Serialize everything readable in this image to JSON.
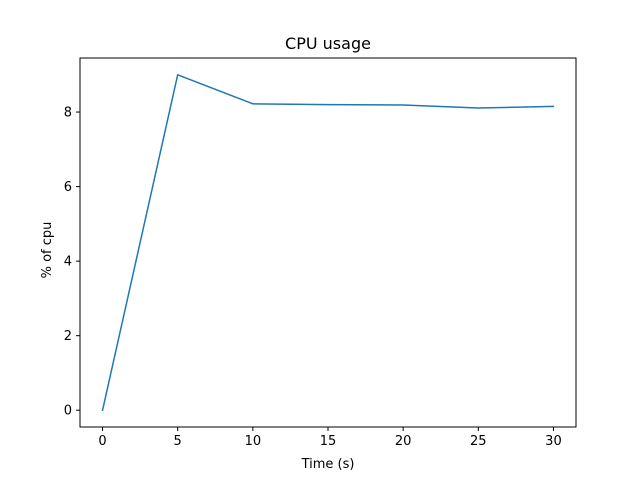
{
  "chart_data": {
    "type": "line",
    "title": "CPU usage",
    "xlabel": "Time (s)",
    "ylabel": "% of cpu",
    "xlim": [
      -1.5,
      31.5
    ],
    "ylim": [
      -0.45,
      9.45
    ],
    "xticks": [
      0,
      5,
      10,
      15,
      20,
      25,
      30
    ],
    "yticks": [
      0,
      2,
      4,
      6,
      8
    ],
    "grid": false,
    "series": [
      {
        "color": "#1f77b4",
        "x": [
          0,
          5,
          10,
          15,
          20,
          25,
          30
        ],
        "y": [
          0.0,
          9.0,
          8.22,
          8.2,
          8.19,
          8.11,
          8.15
        ]
      }
    ]
  }
}
